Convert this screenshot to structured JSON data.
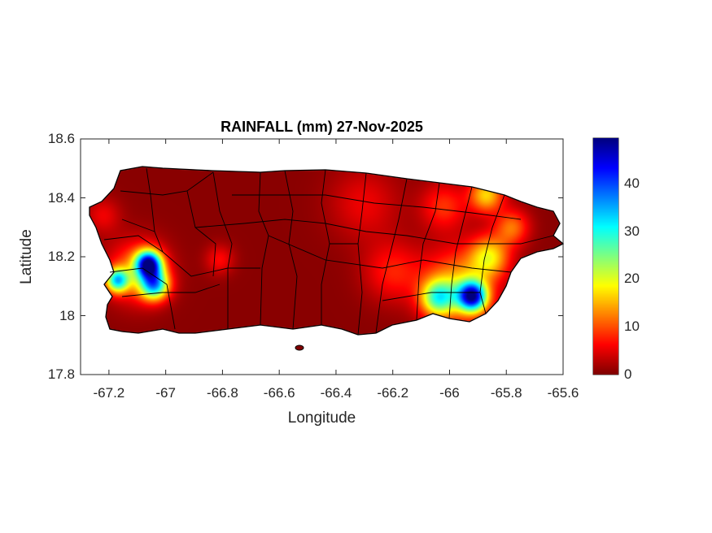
{
  "chart_data": {
    "type": "heatmap",
    "title": "RAINFALL (mm) 27-Nov-2025",
    "xlabel": "Longitude",
    "ylabel": "Latitude",
    "xlim": [
      -67.3,
      -65.6
    ],
    "ylim": [
      17.8,
      18.6
    ],
    "xticks": [
      "-67.2",
      "-67",
      "-66.8",
      "-66.6",
      "-66.4",
      "-66.2",
      "-66",
      "-65.8",
      "-65.6"
    ],
    "xtick_values": [
      -67.2,
      -67,
      -66.8,
      -66.6,
      -66.4,
      -66.2,
      -66,
      -65.8,
      -65.6
    ],
    "yticks": [
      "18.6",
      "18.4",
      "18.2",
      "18",
      "17.8"
    ],
    "ytick_values": [
      18.6,
      18.4,
      18.2,
      18,
      17.8
    ],
    "colorbar": {
      "colormap": "jet (reversed)",
      "clim": [
        0,
        49.5
      ],
      "ticks": [
        "40",
        "30",
        "20",
        "10",
        "0"
      ],
      "tick_values": [
        40,
        30,
        20,
        10,
        0
      ]
    },
    "background_value": 0.5,
    "hotspots": [
      {
        "lon": -67.06,
        "lat": 18.175,
        "peak": 42,
        "radius": 0.045
      },
      {
        "lon": -67.04,
        "lat": 18.105,
        "peak": 30,
        "radius": 0.05
      },
      {
        "lon": -67.17,
        "lat": 18.12,
        "peak": 28,
        "radius": 0.04
      },
      {
        "lon": -67.1,
        "lat": 18.15,
        "peak": 12,
        "radius": 0.1
      },
      {
        "lon": -66.81,
        "lat": 18.19,
        "peak": 6,
        "radius": 0.05
      },
      {
        "lon": -65.92,
        "lat": 18.065,
        "peak": 40,
        "radius": 0.05
      },
      {
        "lon": -66.04,
        "lat": 18.06,
        "peak": 22,
        "radius": 0.06
      },
      {
        "lon": -65.97,
        "lat": 18.1,
        "peak": 14,
        "radius": 0.12
      },
      {
        "lon": -65.86,
        "lat": 18.2,
        "peak": 16,
        "radius": 0.07
      },
      {
        "lon": -65.87,
        "lat": 18.41,
        "peak": 16,
        "radius": 0.06
      },
      {
        "lon": -65.78,
        "lat": 18.3,
        "peak": 11,
        "radius": 0.06
      },
      {
        "lon": -66.2,
        "lat": 18.15,
        "peak": 7,
        "radius": 0.1
      },
      {
        "lon": -66.3,
        "lat": 18.38,
        "peak": 5,
        "radius": 0.12
      },
      {
        "lon": -66.02,
        "lat": 18.37,
        "peak": 8,
        "radius": 0.08
      },
      {
        "lon": -67.22,
        "lat": 18.34,
        "peak": 5,
        "radius": 0.06
      }
    ]
  }
}
